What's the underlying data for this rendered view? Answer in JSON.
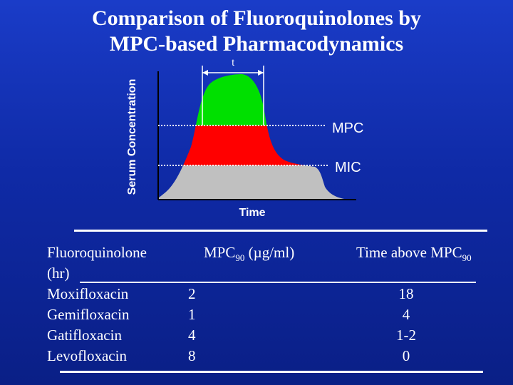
{
  "title": {
    "line1": "Comparison of Fluoroquinolones by",
    "line2": "MPC-based Pharmacodynamics"
  },
  "diagram": {
    "y_axis_label": "Serum Concentration",
    "x_axis_label": "Time",
    "t_marker_label": "t",
    "mpc_label": "MPC",
    "mic_label": "MIC",
    "colors": {
      "above_mpc": "#00e000",
      "between_mic_mpc": "#ff0000",
      "below_mic": "#c0c0c0",
      "background": "#1434b8",
      "text": "#ffffff"
    }
  },
  "table": {
    "headers": {
      "col1_line1": "Fluoroquinolone",
      "col1_line2": "(hr)",
      "col2_prefix": "MPC",
      "col2_sub": "90",
      "col2_suffix": " (µg/ml)",
      "col3_prefix": "Time above MPC",
      "col3_sub": "90"
    },
    "rows": [
      {
        "name": "Moxifloxacin",
        "mpc90": "2",
        "time_above": "18"
      },
      {
        "name": "Gemifloxacin",
        "mpc90": "1",
        "time_above": "4"
      },
      {
        "name": "Gatifloxacin",
        "mpc90": "4",
        "time_above": "1-2"
      },
      {
        "name": "Levofloxacin",
        "mpc90": "8",
        "time_above": "0"
      }
    ]
  }
}
